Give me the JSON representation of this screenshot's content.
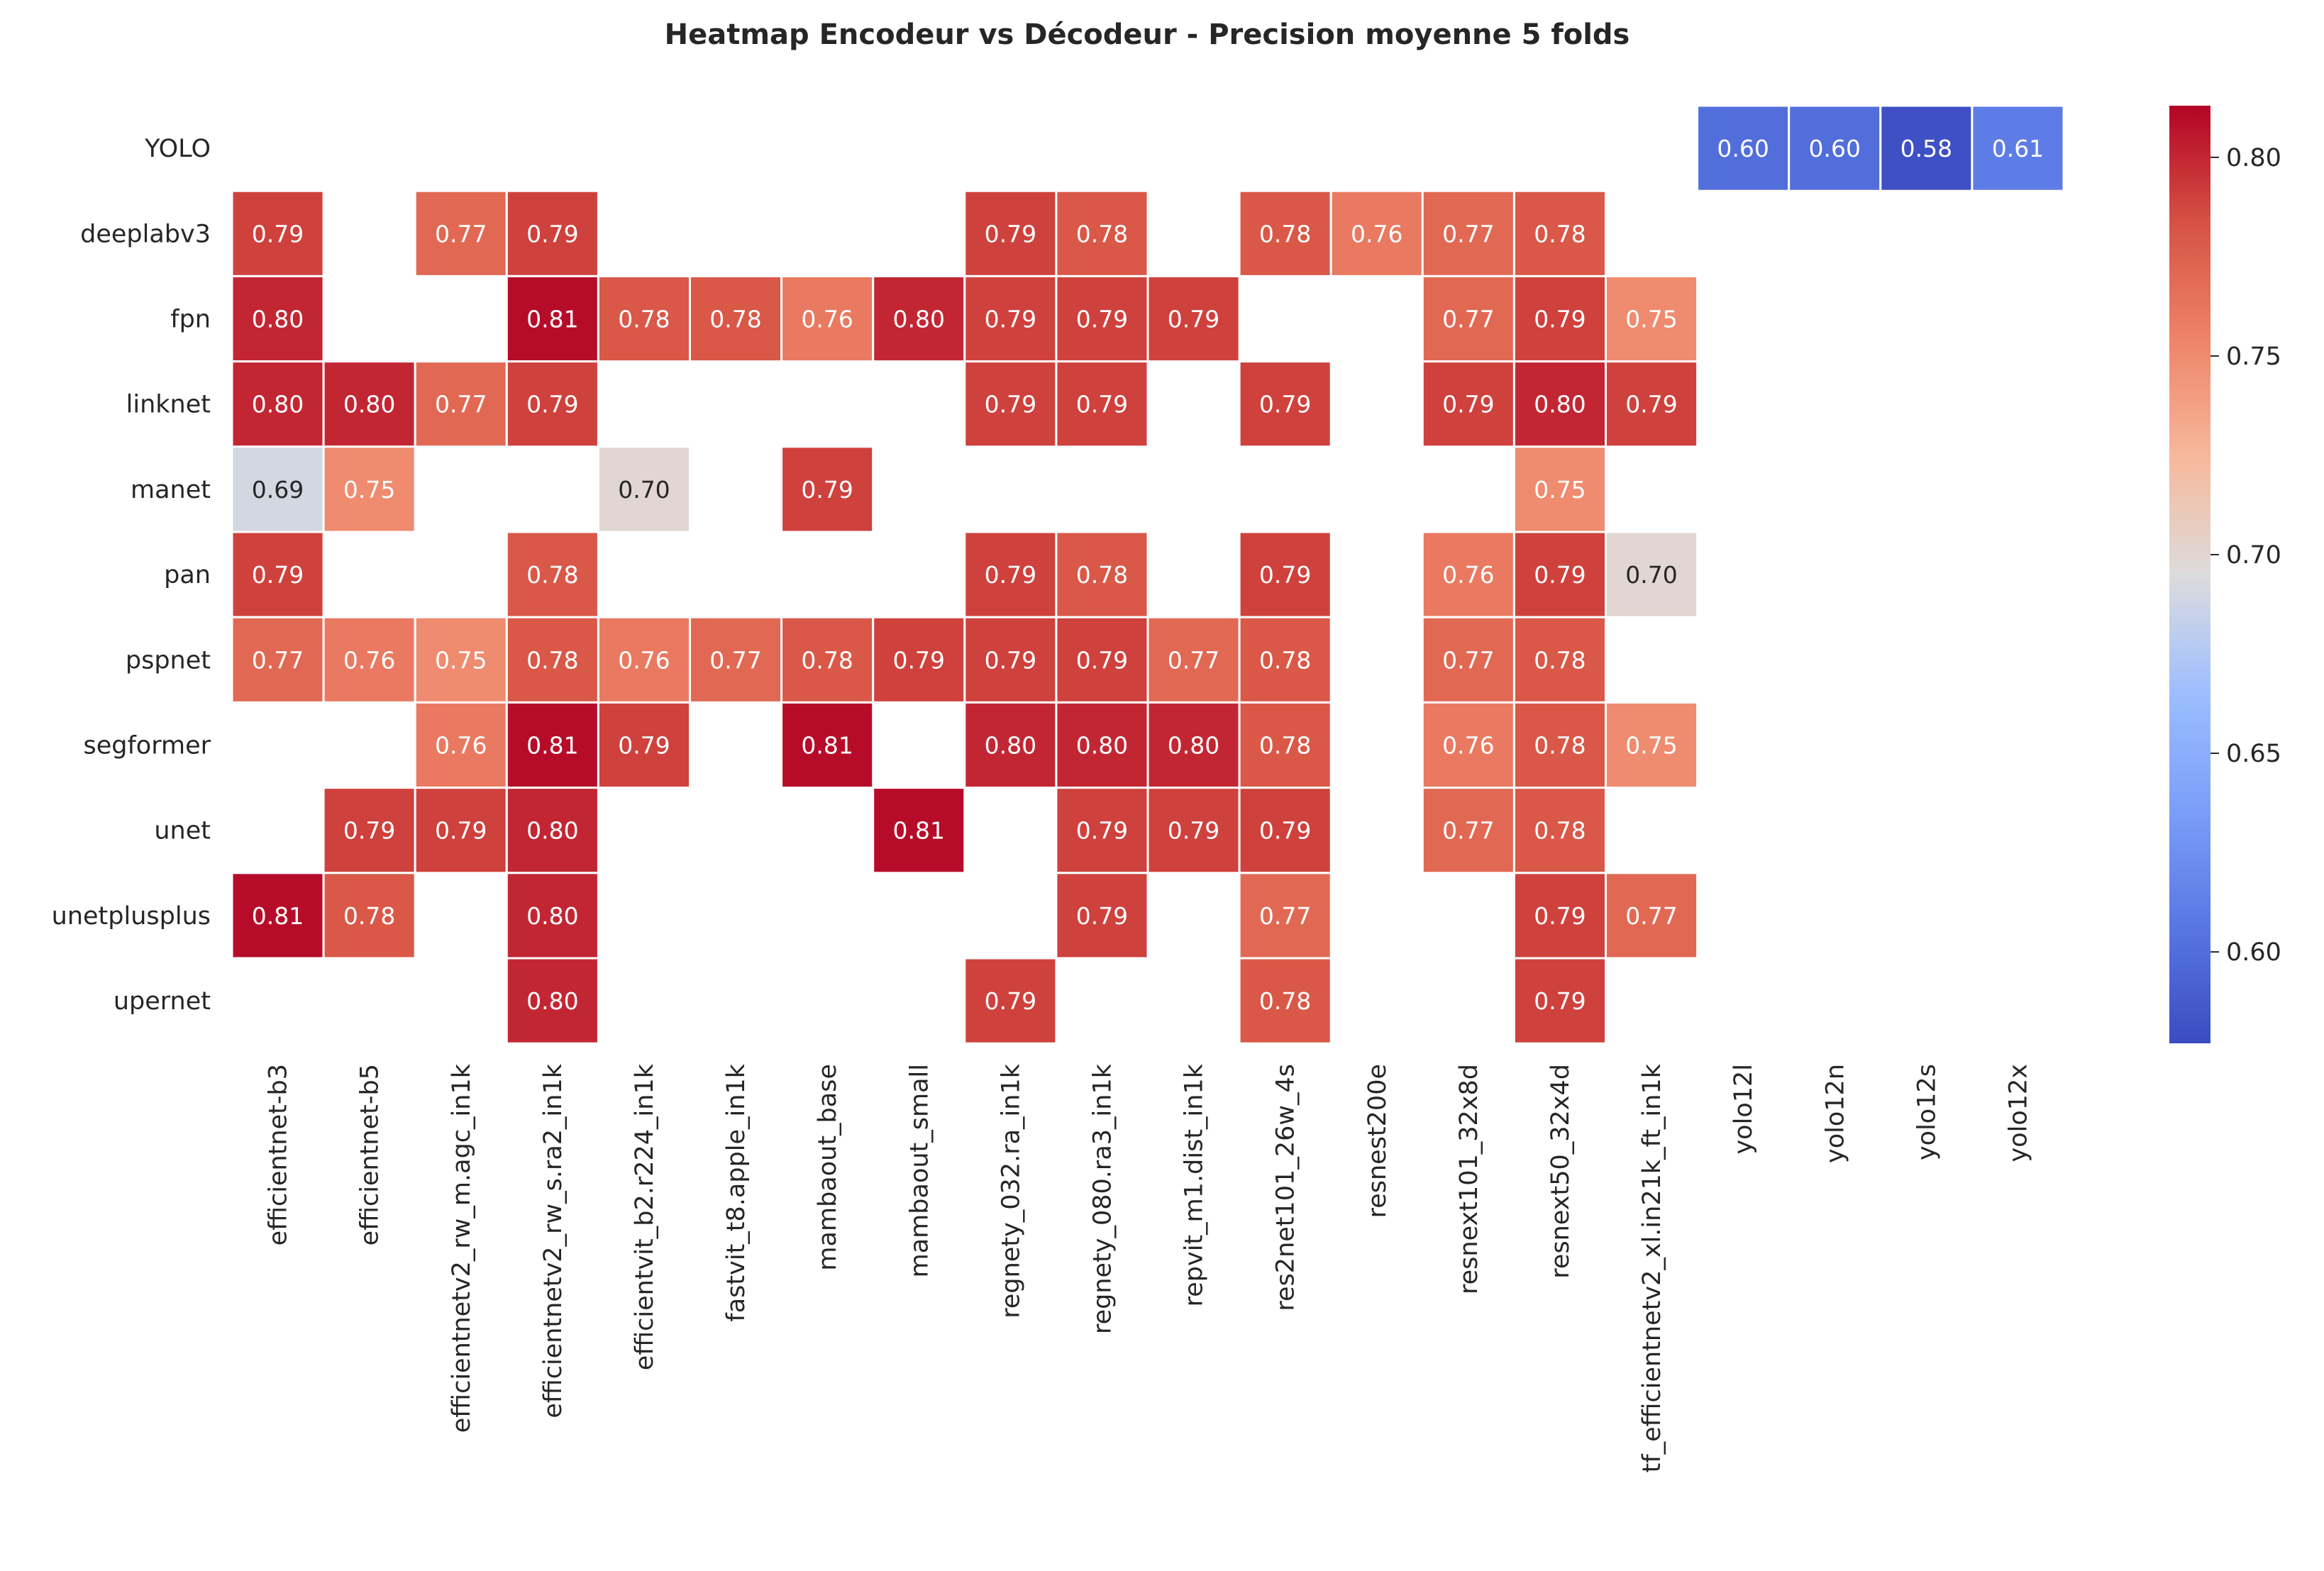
{
  "chart_data": {
    "type": "heatmap",
    "title": "Heatmap Encodeur vs Décodeur - Precision moyenne 5 folds",
    "xlabel": "",
    "ylabel": "",
    "rows": [
      "YOLO",
      "deeplabv3",
      "fpn",
      "linknet",
      "manet",
      "pan",
      "pspnet",
      "segformer",
      "unet",
      "unetplusplus",
      "upernet"
    ],
    "columns": [
      "efficientnet-b3",
      "efficientnet-b5",
      "efficientnetv2_rw_m.agc_in1k",
      "efficientnetv2_rw_s.ra2_in1k",
      "efficientvit_b2.r224_in1k",
      "fastvit_t8.apple_in1k",
      "mambaout_base",
      "mambaout_small",
      "regnety_032.ra_in1k",
      "regnety_080.ra3_in1k",
      "repvit_m1.dist_in1k",
      "res2net101_26w_4s",
      "resnest200e",
      "resnext101_32x8d",
      "resnext50_32x4d",
      "tf_efficientnetv2_xl.in21k_ft_in1k",
      "yolo12l",
      "yolo12n",
      "yolo12s",
      "yolo12x"
    ],
    "values": [
      [
        null,
        null,
        null,
        null,
        null,
        null,
        null,
        null,
        null,
        null,
        null,
        null,
        null,
        null,
        null,
        null,
        0.6,
        0.6,
        0.58,
        0.61
      ],
      [
        0.79,
        null,
        0.77,
        0.79,
        null,
        null,
        null,
        null,
        0.79,
        0.78,
        null,
        0.78,
        0.76,
        0.77,
        0.78,
        null,
        null,
        null,
        null,
        null
      ],
      [
        0.8,
        null,
        null,
        0.81,
        0.78,
        0.78,
        0.76,
        0.8,
        0.79,
        0.79,
        0.79,
        null,
        null,
        0.77,
        0.79,
        0.75,
        null,
        null,
        null,
        null
      ],
      [
        0.8,
        0.8,
        0.77,
        0.79,
        null,
        null,
        null,
        null,
        0.79,
        0.79,
        null,
        0.79,
        null,
        0.79,
        0.8,
        0.79,
        null,
        null,
        null,
        null
      ],
      [
        0.69,
        0.75,
        null,
        null,
        0.7,
        null,
        0.79,
        null,
        null,
        null,
        null,
        null,
        null,
        null,
        0.75,
        null,
        null,
        null,
        null,
        null
      ],
      [
        0.79,
        null,
        null,
        0.78,
        null,
        null,
        null,
        null,
        0.79,
        0.78,
        null,
        0.79,
        null,
        0.76,
        0.79,
        0.7,
        null,
        null,
        null,
        null
      ],
      [
        0.77,
        0.76,
        0.75,
        0.78,
        0.76,
        0.77,
        0.78,
        0.79,
        0.79,
        0.79,
        0.77,
        0.78,
        null,
        0.77,
        0.78,
        null,
        null,
        null,
        null,
        null
      ],
      [
        null,
        null,
        0.76,
        0.81,
        0.79,
        null,
        0.81,
        null,
        0.8,
        0.8,
        0.8,
        0.78,
        null,
        0.76,
        0.78,
        0.75,
        null,
        null,
        null,
        null
      ],
      [
        null,
        0.79,
        0.79,
        0.8,
        null,
        null,
        null,
        0.81,
        null,
        0.79,
        0.79,
        0.79,
        null,
        0.77,
        0.78,
        null,
        null,
        null,
        null,
        null
      ],
      [
        0.81,
        0.78,
        null,
        0.8,
        null,
        null,
        null,
        null,
        null,
        0.79,
        null,
        0.77,
        null,
        null,
        0.79,
        0.77,
        null,
        null,
        null,
        null
      ],
      [
        null,
        null,
        null,
        0.8,
        null,
        null,
        null,
        null,
        0.79,
        null,
        null,
        0.78,
        null,
        null,
        0.79,
        null,
        null,
        null,
        null,
        null
      ]
    ],
    "colorscale": "coolwarm",
    "vmin": 0.577,
    "vmax": 0.813,
    "colorbar_ticks": [
      "0.60",
      "0.65",
      "0.70",
      "0.75",
      "0.80"
    ],
    "annotations": "values shown in each cell with 2 decimals",
    "grid": false
  }
}
